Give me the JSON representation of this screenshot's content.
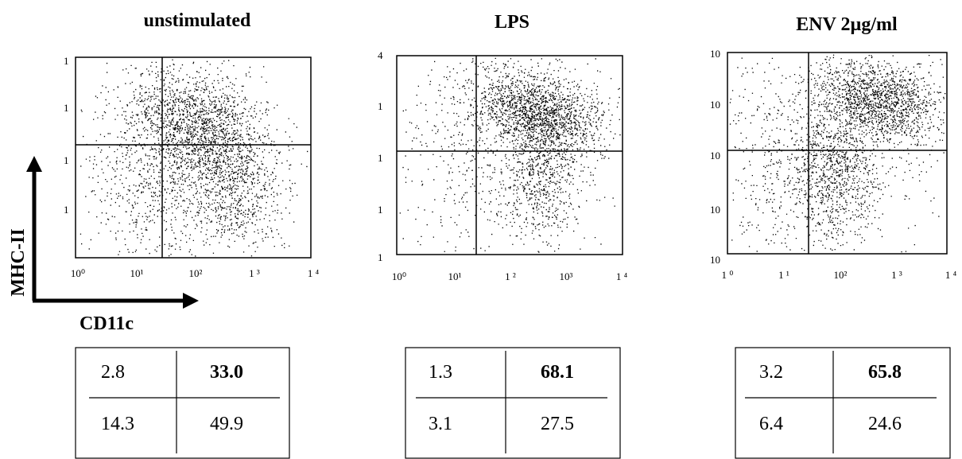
{
  "chart_data": [
    {
      "type": "scatter",
      "title": "unstimulated",
      "xlabel": "CD11c",
      "ylabel": "MHC-II",
      "x_scale": "log",
      "y_scale": "log",
      "xlim": [
        1,
        10000
      ],
      "ylim": [
        1,
        10000
      ],
      "x_tick_labels": [
        "10⁰",
        "10¹",
        "10²",
        "1 ³",
        "1 ⁴"
      ],
      "y_tick_labels": [
        "",
        "1",
        "1",
        "1",
        "1"
      ],
      "quadrant_percentages": {
        "upper_left": "2.8",
        "upper_right": "33.0",
        "lower_left": "14.3",
        "lower_right": "49.9"
      }
    },
    {
      "type": "scatter",
      "title": "LPS",
      "x_scale": "log",
      "y_scale": "log",
      "xlim": [
        1,
        10000
      ],
      "ylim": [
        1,
        10000
      ],
      "x_tick_labels": [
        "10⁰",
        "10¹",
        "1 ²",
        "10³",
        "1 ⁴"
      ],
      "y_tick_labels": [
        "1",
        "1",
        "1",
        "1",
        "4"
      ],
      "quadrant_percentages": {
        "upper_left": "1.3",
        "upper_right": "68.1",
        "lower_left": "3.1",
        "lower_right": "27.5"
      }
    },
    {
      "type": "scatter",
      "title": "ENV 2µg/ml",
      "x_scale": "log",
      "y_scale": "log",
      "xlim": [
        1,
        10000
      ],
      "ylim": [
        1,
        10000
      ],
      "x_tick_labels": [
        "1 ⁰",
        "1 ¹",
        "10²",
        "1 ³",
        "1 ⁴"
      ],
      "y_tick_labels": [
        "10",
        "10",
        "10",
        "10",
        "10"
      ],
      "quadrant_percentages": {
        "upper_left": "3.2",
        "upper_right": "65.8",
        "lower_left": "6.4",
        "lower_right": "24.6"
      }
    }
  ]
}
